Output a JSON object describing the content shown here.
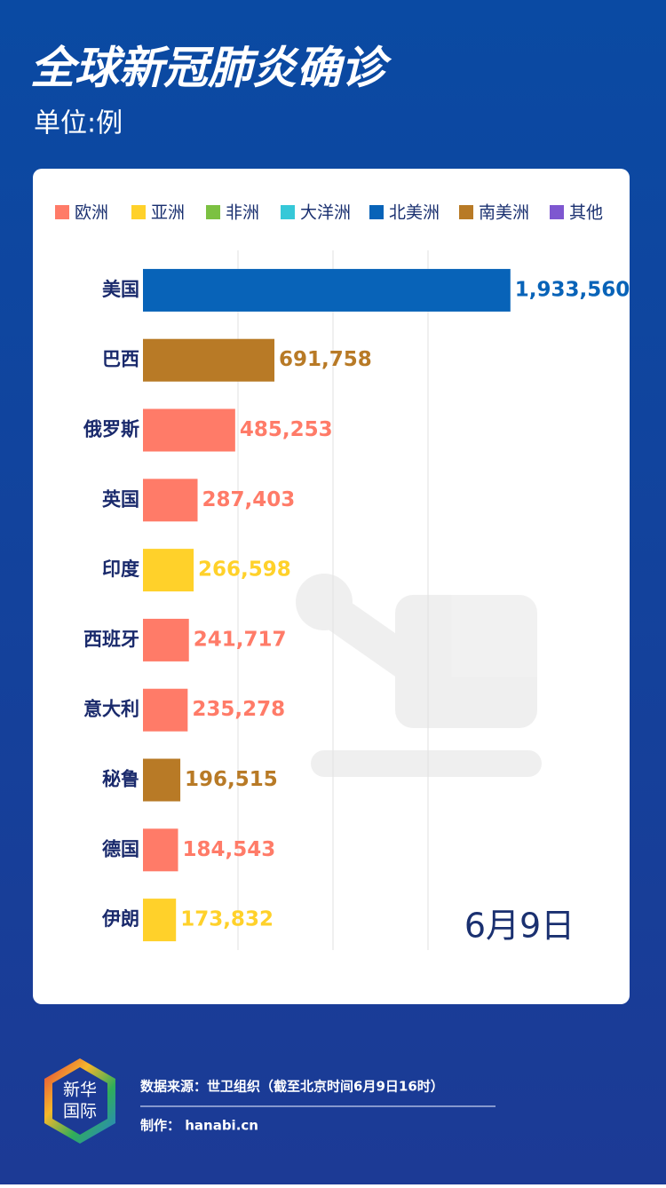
{
  "chart_data": {
    "type": "bar",
    "orientation": "horizontal",
    "title": "全球新冠肺炎确诊",
    "subtitle": "单位:例",
    "legend": [
      {
        "name": "欧洲",
        "color": "#ff7b68"
      },
      {
        "name": "亚洲",
        "color": "#ffd12a"
      },
      {
        "name": "非洲",
        "color": "#7cc142"
      },
      {
        "name": "大洋洲",
        "color": "#36c8d8"
      },
      {
        "name": "北美洲",
        "color": "#0863b8"
      },
      {
        "name": "南美洲",
        "color": "#b87a26"
      },
      {
        "name": "其他",
        "color": "#7e57d0"
      }
    ],
    "categories": [
      "美国",
      "巴西",
      "俄罗斯",
      "英国",
      "印度",
      "西班牙",
      "意大利",
      "秘鲁",
      "德国",
      "伊朗"
    ],
    "values": [
      1933560,
      691758,
      485253,
      287403,
      266598,
      241717,
      235278,
      196515,
      184543,
      173832
    ],
    "value_labels": [
      "1,933,560",
      "691,758",
      "485,253",
      "287,403",
      "266,598",
      "241,717",
      "235,278",
      "196,515",
      "184,543",
      "173,832"
    ],
    "colors": [
      "#0863b8",
      "#b87a26",
      "#ff7b68",
      "#ff7b68",
      "#ffd12a",
      "#ff7b68",
      "#ff7b68",
      "#b87a26",
      "#ff7b68",
      "#ffd12a"
    ],
    "xlim": [
      0,
      2000000
    ],
    "xticks": [
      500000,
      1000000,
      1500000
    ],
    "grid": true,
    "annotation": "6月9日"
  },
  "footer": {
    "logo": [
      "新华",
      "国际"
    ],
    "source": "数据来源：世卫组织（截至北京时间6月9日16时）",
    "credit": "制作： hanabi.cn"
  }
}
